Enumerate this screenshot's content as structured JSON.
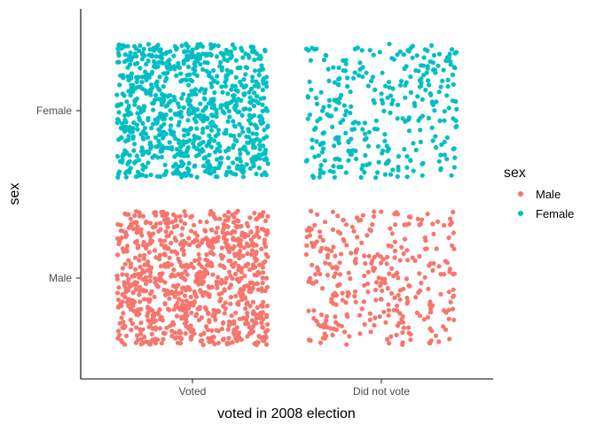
{
  "chart_data": {
    "type": "scatter",
    "subtype": "jitter",
    "title": "",
    "xlabel": "voted in 2008 election",
    "ylabel": "sex",
    "x_categories": [
      "Voted",
      "Did not vote"
    ],
    "y_categories": [
      "Male",
      "Female"
    ],
    "jitter": {
      "width": 0.4,
      "height": 0.4
    },
    "grid": false,
    "legend": {
      "title": "sex",
      "position": "right",
      "entries": [
        {
          "label": "Male",
          "color": "#F8766D"
        },
        {
          "label": "Female",
          "color": "#00BFC4"
        }
      ]
    },
    "groups": [
      {
        "sex": "Female",
        "vote": "Voted",
        "approx_count": 900,
        "color": "#00BFC4"
      },
      {
        "sex": "Female",
        "vote": "Did not vote",
        "approx_count": 330,
        "color": "#00BFC4"
      },
      {
        "sex": "Male",
        "vote": "Voted",
        "approx_count": 900,
        "color": "#F8766D"
      },
      {
        "sex": "Male",
        "vote": "Did not vote",
        "approx_count": 330,
        "color": "#F8766D"
      }
    ]
  }
}
